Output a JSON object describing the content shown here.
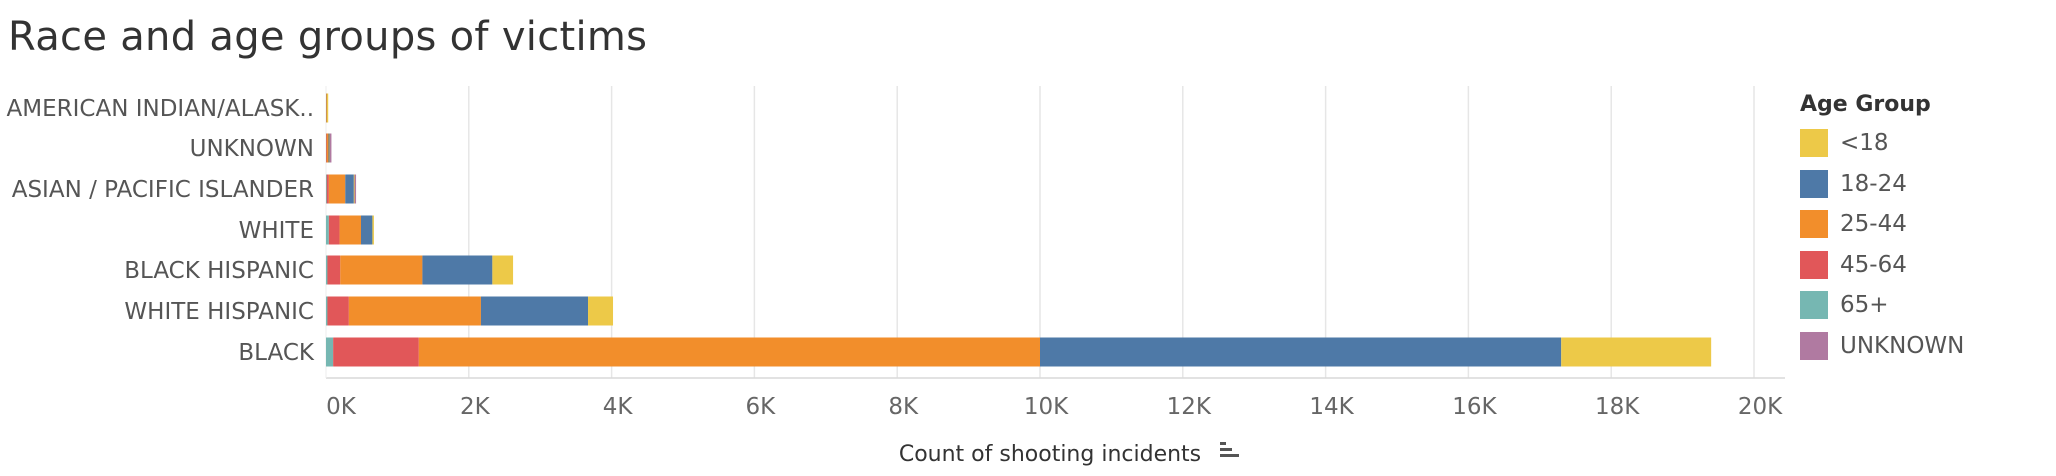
{
  "chart_data": {
    "type": "bar",
    "orientation": "horizontal",
    "stacked": true,
    "title": "Race and age groups of victims",
    "xlabel": "Count of shooting incidents",
    "ylabel": "",
    "xlim": [
      0,
      20000
    ],
    "x_ticks": [
      "0K",
      "2K",
      "4K",
      "6K",
      "8K",
      "10K",
      "12K",
      "14K",
      "16K",
      "18K",
      "20K"
    ],
    "grid": true,
    "legend_position": "right",
    "legend_title": "Age Group",
    "categories": [
      "AMERICAN INDIAN/ALASK..",
      "UNKNOWN",
      "ASIAN / PACIFIC ISLANDER",
      "WHITE",
      "BLACK HISPANIC",
      "WHITE HISPANIC",
      "BLACK"
    ],
    "series": [
      {
        "name": "65+",
        "color": "#76b7b2",
        "values": [
          0,
          2,
          10,
          40,
          20,
          20,
          100
        ]
      },
      {
        "name": "45-64",
        "color": "#e15759",
        "values": [
          2,
          8,
          30,
          150,
          180,
          300,
          1200
        ]
      },
      {
        "name": "25-44",
        "color": "#f28e2b",
        "values": [
          5,
          25,
          230,
          300,
          1150,
          1850,
          8700
        ]
      },
      {
        "name": "18-24",
        "color": "#4e79a7",
        "values": [
          3,
          15,
          120,
          160,
          980,
          1500,
          7300
        ]
      },
      {
        "name": "<18",
        "color": "#edc948",
        "values": [
          2,
          5,
          10,
          10,
          290,
          350,
          2100
        ]
      },
      {
        "name": "UNKNOWN",
        "color": "#b07aa1",
        "values": [
          0,
          5,
          5,
          0,
          0,
          0,
          0
        ]
      }
    ],
    "legend_order": [
      "<18",
      "18-24",
      "25-44",
      "45-64",
      "65+",
      "UNKNOWN"
    ]
  }
}
